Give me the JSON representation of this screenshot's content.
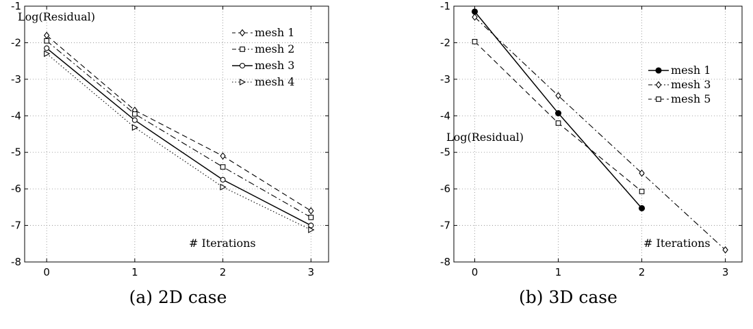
{
  "chart_data": [
    {
      "type": "line",
      "caption": "(a) 2D case",
      "annotation_y": "Log(Residual)",
      "annotation_x": "# Iterations",
      "xlim": [
        -0.25,
        3.2
      ],
      "ylim": [
        -8,
        -1
      ],
      "xticks": [
        0,
        1,
        2,
        3
      ],
      "yticks": [
        -8,
        -7,
        -6,
        -5,
        -4,
        -3,
        -2,
        -1
      ],
      "grid": true,
      "legend_position": "top-right",
      "series": [
        {
          "name": "mesh 1",
          "marker": "diamond",
          "dash": "dashed",
          "x": [
            0,
            1,
            2,
            3
          ],
          "y": [
            -1.8,
            -3.85,
            -5.1,
            -6.6
          ]
        },
        {
          "name": "mesh 2",
          "marker": "square",
          "dash": "dashdot",
          "x": [
            0,
            1,
            2,
            3
          ],
          "y": [
            -1.95,
            -3.95,
            -5.4,
            -6.78
          ]
        },
        {
          "name": "mesh 3",
          "marker": "circle",
          "dash": "solid",
          "x": [
            0,
            1,
            2,
            3
          ],
          "y": [
            -2.15,
            -4.12,
            -5.75,
            -7.0
          ]
        },
        {
          "name": "mesh 4",
          "marker": "triangle-right",
          "dash": "dotted",
          "x": [
            0,
            1,
            2,
            3
          ],
          "y": [
            -2.3,
            -4.32,
            -5.95,
            -7.12
          ]
        }
      ]
    },
    {
      "type": "line",
      "caption": "(b) 3D case",
      "annotation_y": "Log(Residual)",
      "annotation_x": "# Iterations",
      "xlim": [
        -0.25,
        3.2
      ],
      "ylim": [
        -8,
        -1
      ],
      "xticks": [
        0,
        1,
        2,
        3
      ],
      "yticks": [
        -8,
        -7,
        -6,
        -5,
        -4,
        -3,
        -2,
        -1
      ],
      "grid": true,
      "legend_position": "top-right",
      "series": [
        {
          "name": "mesh 1",
          "marker": "circle-filled",
          "dash": "solid",
          "x": [
            0,
            1,
            2
          ],
          "y": [
            -1.15,
            -3.93,
            -6.53
          ]
        },
        {
          "name": "mesh 3",
          "marker": "diamond",
          "dash": "dashdot",
          "x": [
            0,
            1,
            2,
            3
          ],
          "y": [
            -1.3,
            -3.45,
            -5.57,
            -7.67
          ]
        },
        {
          "name": "mesh 5",
          "marker": "square",
          "dash": "dashed",
          "x": [
            0,
            1,
            2
          ],
          "y": [
            -1.97,
            -4.2,
            -6.07
          ]
        }
      ]
    }
  ]
}
